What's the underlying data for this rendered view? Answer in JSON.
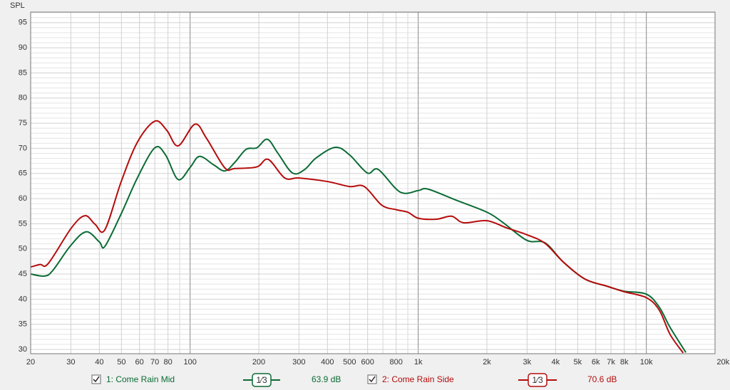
{
  "chart_data": {
    "type": "line",
    "ylabel": "SPL",
    "log_x": true,
    "minor_grid": true,
    "xlim": [
      20,
      20000
    ],
    "ylim": [
      29.15,
      97.1
    ],
    "xticks": [
      20,
      30,
      40,
      50,
      60,
      70,
      80,
      100,
      200,
      300,
      400,
      500,
      600,
      800,
      {
        "value": 1000,
        "label": "1k"
      },
      {
        "value": 2000,
        "label": "2k"
      },
      {
        "value": 3000,
        "label": "3k"
      },
      {
        "value": 4000,
        "label": "4k"
      },
      {
        "value": 5000,
        "label": "5k"
      },
      {
        "value": 6000,
        "label": "6k"
      },
      {
        "value": 7000,
        "label": "7k"
      },
      {
        "value": 8000,
        "label": "8k"
      },
      {
        "value": 10000,
        "label": "10k"
      },
      {
        "value": 20000,
        "label": "20kHz"
      }
    ],
    "yticks": [
      30,
      35,
      40,
      45,
      50,
      55,
      60,
      65,
      70,
      75,
      80,
      85,
      90,
      95
    ],
    "series": [
      {
        "name": "1: Come Rain Mid",
        "color": "#0b6b35",
        "smoothing": "1⁄3",
        "level": "63.9 dB",
        "x": [
          20,
          23,
          25,
          30,
          35,
          40,
          42.3,
          49.9,
          58.7,
          70,
          78,
          88.6,
          100,
          110,
          127,
          142,
          157,
          176,
          196,
          218,
          242,
          281,
          318,
          357,
          433,
          500,
          598,
          668,
          833,
          1000,
          1101,
          1464,
          2000,
          2343,
          2992,
          3597,
          4321,
          5380,
          6700,
          7962,
          10000,
          11400,
          12700,
          14900
        ],
        "values": [
          45.0,
          44.6,
          45.7,
          50.7,
          53.4,
          51.4,
          50.5,
          57.0,
          64.1,
          70.1,
          68.7,
          63.8,
          66.2,
          68.4,
          66.7,
          65.5,
          67.2,
          69.8,
          70.1,
          71.8,
          69.1,
          65.1,
          65.8,
          68.1,
          70.2,
          68.7,
          65.1,
          65.8,
          61.3,
          61.6,
          61.9,
          59.7,
          57.3,
          55.3,
          51.7,
          51.2,
          47.4,
          44.0,
          42.6,
          41.6,
          41.0,
          38.4,
          34.4,
          29.4
        ]
      },
      {
        "name": "2: Come Rain Side",
        "color": "#b50c0c",
        "smoothing": "1⁄3",
        "level": "70.6 dB",
        "x": [
          20,
          22,
          23.9,
          30.2,
          34.6,
          38.3,
          42.3,
          49.9,
          58.7,
          70,
          79,
          88.6,
          105,
          118,
          142,
          157,
          196,
          220,
          260,
          300,
          400,
          500,
          580,
          692,
          800,
          900,
          1000,
          1200,
          1400,
          1580,
          2000,
          2434,
          3000,
          3597,
          4321,
          5380,
          6700,
          7962,
          10000,
          11400,
          12700,
          14500
        ],
        "values": [
          46.4,
          46.9,
          47.1,
          54.2,
          56.6,
          54.9,
          53.8,
          63.4,
          71.2,
          75.4,
          73.6,
          70.5,
          74.8,
          72.0,
          66.1,
          66.0,
          66.3,
          67.8,
          64.1,
          64.1,
          63.4,
          62.4,
          62.4,
          58.7,
          57.8,
          57.3,
          56.1,
          55.9,
          56.5,
          55.2,
          55.6,
          54.2,
          52.8,
          51.1,
          47.4,
          44.0,
          42.6,
          41.5,
          40.3,
          37.8,
          33.0,
          29.3
        ]
      }
    ]
  }
}
